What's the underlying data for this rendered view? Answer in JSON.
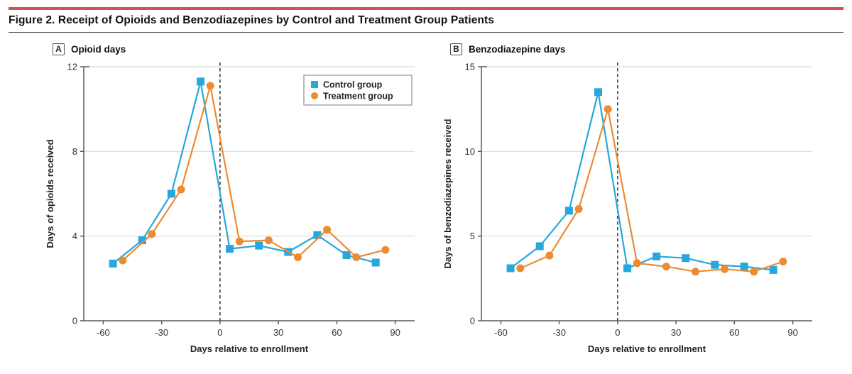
{
  "header": {
    "title": "Figure 2. Receipt of Opioids and Benzodiazepines by Control and Treatment Group Patients",
    "accent_color": "#D25252"
  },
  "style": {
    "grid_color": "#d9d9d9",
    "axis_color": "#5a5a5a",
    "reference_line_color": "#222222",
    "legend_border_color": "#999999",
    "control_color": "#27A7DC",
    "treatment_color": "#EC8B33"
  },
  "chart_data": [
    {
      "type": "line",
      "panel": "A",
      "title": "Opioid days",
      "xlabel": "Days relative to enrollment",
      "ylabel": "Days of opioids received",
      "xlim": [
        -70,
        100
      ],
      "ylim": [
        0,
        12
      ],
      "xticks": [
        -60,
        -30,
        0,
        30,
        60,
        90
      ],
      "yticks": [
        0,
        4,
        8,
        12
      ],
      "grid": "horizontal",
      "reference_line_x": 0,
      "legend": {
        "show": true,
        "position": "inside-top-right",
        "items": [
          "Control group",
          "Treatment group"
        ]
      },
      "series": [
        {
          "name": "Control group",
          "marker": "square",
          "color": "#27A7DC",
          "points": [
            [
              -55,
              2.7
            ],
            [
              -40,
              3.8
            ],
            [
              -25,
              6.0
            ],
            [
              -10,
              11.3
            ],
            [
              5,
              3.4
            ],
            [
              20,
              3.55
            ],
            [
              35,
              3.25
            ],
            [
              50,
              4.05
            ],
            [
              65,
              3.1
            ],
            [
              80,
              2.75
            ]
          ]
        },
        {
          "name": "Treatment group",
          "marker": "circle",
          "color": "#EC8B33",
          "points": [
            [
              -50,
              2.85
            ],
            [
              -35,
              4.1
            ],
            [
              -20,
              6.2
            ],
            [
              -5,
              11.1
            ],
            [
              10,
              3.75
            ],
            [
              25,
              3.8
            ],
            [
              40,
              3.0
            ],
            [
              55,
              4.3
            ],
            [
              70,
              3.0
            ],
            [
              85,
              3.35
            ]
          ]
        }
      ]
    },
    {
      "type": "line",
      "panel": "B",
      "title": "Benzodiazepine days",
      "xlabel": "Days relative to enrollment",
      "ylabel": "Days of benzodiazepines received",
      "xlim": [
        -70,
        100
      ],
      "ylim": [
        0,
        15
      ],
      "xticks": [
        -60,
        -30,
        0,
        30,
        60,
        90
      ],
      "yticks": [
        0,
        5,
        10,
        15
      ],
      "grid": "horizontal",
      "reference_line_x": 0,
      "legend": {
        "show": false
      },
      "series": [
        {
          "name": "Control group",
          "marker": "square",
          "color": "#27A7DC",
          "points": [
            [
              -55,
              3.1
            ],
            [
              -40,
              4.4
            ],
            [
              -25,
              6.5
            ],
            [
              -10,
              13.5
            ],
            [
              5,
              3.1
            ],
            [
              20,
              3.8
            ],
            [
              35,
              3.7
            ],
            [
              50,
              3.3
            ],
            [
              65,
              3.2
            ],
            [
              80,
              3.0
            ]
          ]
        },
        {
          "name": "Treatment group",
          "marker": "circle",
          "color": "#EC8B33",
          "points": [
            [
              -50,
              3.1
            ],
            [
              -35,
              3.85
            ],
            [
              -20,
              6.6
            ],
            [
              -5,
              12.5
            ],
            [
              10,
              3.4
            ],
            [
              25,
              3.2
            ],
            [
              40,
              2.9
            ],
            [
              55,
              3.05
            ],
            [
              70,
              2.9
            ],
            [
              85,
              3.5
            ]
          ]
        }
      ]
    }
  ]
}
